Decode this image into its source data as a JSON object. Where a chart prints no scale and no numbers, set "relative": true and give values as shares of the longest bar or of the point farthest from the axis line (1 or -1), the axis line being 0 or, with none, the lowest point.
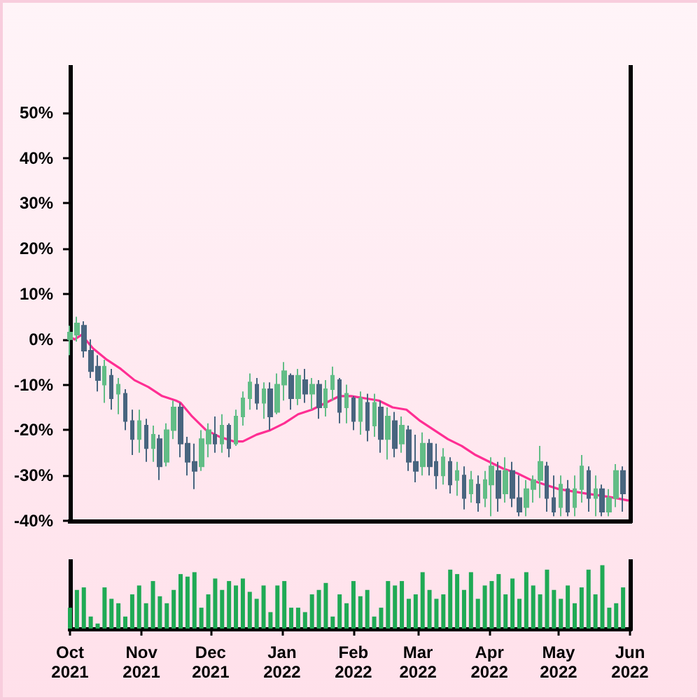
{
  "chart_data": [
    {
      "type": "candlestick",
      "x": [
        "2021-10-01",
        "2021-10-04",
        "2021-10-07",
        "2021-10-10",
        "2021-10-13",
        "2021-10-16",
        "2021-10-19",
        "2021-10-22",
        "2021-10-25",
        "2021-10-28",
        "2021-10-31",
        "2021-11-03",
        "2021-11-06",
        "2021-11-09",
        "2021-11-12",
        "2021-11-15",
        "2021-11-18",
        "2021-11-21",
        "2021-11-24",
        "2021-11-27",
        "2021-11-30",
        "2021-12-03",
        "2021-12-06",
        "2021-12-09",
        "2021-12-12",
        "2021-12-15",
        "2021-12-18",
        "2021-12-21",
        "2021-12-24",
        "2021-12-27",
        "2021-12-30",
        "2022-01-02",
        "2022-01-05",
        "2022-01-08",
        "2022-01-11",
        "2022-01-14",
        "2022-01-17",
        "2022-01-20",
        "2022-01-23",
        "2022-01-26",
        "2022-01-29",
        "2022-02-01",
        "2022-02-04",
        "2022-02-07",
        "2022-02-10",
        "2022-02-13",
        "2022-02-16",
        "2022-02-19",
        "2022-02-22",
        "2022-02-25",
        "2022-02-28",
        "2022-03-03",
        "2022-03-06",
        "2022-03-09",
        "2022-03-12",
        "2022-03-15",
        "2022-03-18",
        "2022-03-21",
        "2022-03-24",
        "2022-03-27",
        "2022-03-30",
        "2022-04-02",
        "2022-04-05",
        "2022-04-08",
        "2022-04-11",
        "2022-04-14",
        "2022-04-17",
        "2022-04-20",
        "2022-04-23",
        "2022-04-26",
        "2022-04-29",
        "2022-05-02",
        "2022-05-05",
        "2022-05-08",
        "2022-05-11",
        "2022-05-14",
        "2022-05-17",
        "2022-05-20",
        "2022-05-23",
        "2022-05-26",
        "2022-05-29"
      ],
      "ohlc": [
        [
          0,
          3,
          -3.5,
          1.5
        ],
        [
          1,
          5,
          -0.5,
          3.5
        ],
        [
          3,
          4,
          -4,
          -2.5
        ],
        [
          -2.5,
          0,
          -8.5,
          -7
        ],
        [
          -6,
          -3.5,
          -11.5,
          -9
        ],
        [
          -10,
          -4.5,
          -14,
          -6
        ],
        [
          -8,
          -6.5,
          -15.5,
          -13
        ],
        [
          -12,
          -8.5,
          -16.5,
          -10
        ],
        [
          -12,
          -11,
          -20,
          -18
        ],
        [
          -18,
          -15.5,
          -25.5,
          -22
        ],
        [
          -22,
          -15.5,
          -25,
          -18
        ],
        [
          -19,
          -17.5,
          -27,
          -24
        ],
        [
          -24,
          -19,
          -27,
          -21
        ],
        [
          -22,
          -21,
          -31,
          -28
        ],
        [
          -27,
          -18.5,
          -28,
          -20
        ],
        [
          -20,
          -13.5,
          -22,
          -15
        ],
        [
          -15,
          -14,
          -26,
          -23
        ],
        [
          -23,
          -21.5,
          -30,
          -27
        ],
        [
          -27,
          -23,
          -33,
          -29
        ],
        [
          -28,
          -20,
          -29,
          -22
        ],
        [
          -23,
          -18.5,
          -26,
          -20
        ],
        [
          -21,
          -17,
          -25,
          -23
        ],
        [
          -23,
          -16.5,
          -25,
          -19
        ],
        [
          -19,
          -18.5,
          -26,
          -24
        ],
        [
          -23,
          -15.5,
          -23.5,
          -17
        ],
        [
          -17,
          -11.5,
          -19,
          -13
        ],
        [
          -13,
          -7.5,
          -15.5,
          -9.5
        ],
        [
          -10,
          -8.5,
          -15.5,
          -14
        ],
        [
          -14,
          -9.5,
          -17.5,
          -11
        ],
        [
          -11,
          -9.5,
          -20,
          -17
        ],
        [
          -16,
          -7.5,
          -16.5,
          -10
        ],
        [
          -10,
          -5,
          -13.5,
          -7
        ],
        [
          -8,
          -7.5,
          -15.5,
          -13
        ],
        [
          -13,
          -6.5,
          -14.5,
          -8
        ],
        [
          -9,
          -6.5,
          -14,
          -12
        ],
        [
          -12,
          -8.5,
          -15.5,
          -10
        ],
        [
          -10,
          -9,
          -17.5,
          -15
        ],
        [
          -15,
          -9,
          -17,
          -11
        ],
        [
          -11,
          -6,
          -13.5,
          -8
        ],
        [
          -9,
          -8.5,
          -18.5,
          -16
        ],
        [
          -15,
          -10,
          -18.5,
          -12
        ],
        [
          -13,
          -12.5,
          -20,
          -18
        ],
        [
          -18,
          -11.5,
          -21,
          -13
        ],
        [
          -14,
          -12,
          -22.5,
          -20
        ],
        [
          -19,
          -12,
          -21.5,
          -14
        ],
        [
          -15,
          -13.5,
          -25,
          -22
        ],
        [
          -22,
          -15,
          -26.5,
          -17
        ],
        [
          -18,
          -16,
          -26,
          -24
        ],
        [
          -23,
          -17,
          -25,
          -19
        ],
        [
          -20,
          -19,
          -29,
          -27
        ],
        [
          -27,
          -21,
          -31.5,
          -29
        ],
        [
          -28,
          -20.5,
          -30,
          -23
        ],
        [
          -23,
          -22,
          -30,
          -28
        ],
        [
          -27,
          -23,
          -33,
          -30
        ],
        [
          -30,
          -24,
          -32,
          -26
        ],
        [
          -27,
          -26,
          -34,
          -32
        ],
        [
          -31,
          -27,
          -34.5,
          -29
        ],
        [
          -30,
          -28,
          -37.5,
          -35
        ],
        [
          -34,
          -29,
          -36,
          -31
        ],
        [
          -32,
          -30,
          -38,
          -36
        ],
        [
          -35,
          -29,
          -37,
          -31
        ],
        [
          -32,
          -26,
          -39,
          -28
        ],
        [
          -29,
          -27,
          -38,
          -35
        ],
        [
          -34,
          -26,
          -36,
          -29
        ],
        [
          -29,
          -27,
          -37,
          -35
        ],
        [
          -35,
          -30,
          -39,
          -38
        ],
        [
          -37,
          -31,
          -39,
          -33
        ],
        [
          -33,
          -30,
          -36,
          -31
        ],
        [
          -31,
          -23.5,
          -35,
          -27
        ],
        [
          -28,
          -27,
          -38,
          -35
        ],
        [
          -35,
          -30,
          -39,
          -38
        ],
        [
          -37,
          -30,
          -39,
          -32
        ],
        [
          -33,
          -31,
          -39,
          -38
        ],
        [
          -37,
          -30,
          -39,
          -33
        ],
        [
          -33,
          -25.5,
          -36,
          -28
        ],
        [
          -29,
          -28,
          -38,
          -35
        ],
        [
          -35,
          -30,
          -39,
          -33
        ],
        [
          -33,
          -32,
          -39,
          -38
        ],
        [
          -38,
          -33,
          -39,
          -35
        ],
        [
          -35,
          -27.5,
          -37,
          -29
        ],
        [
          -29,
          -28,
          -38,
          -34
        ]
      ],
      "colors": [
        "#62bd86",
        "#62bd86",
        "#48657f",
        "#48657f",
        "#48657f",
        "#62bd86",
        "#48657f",
        "#62bd86",
        "#48657f",
        "#48657f",
        "#62bd86",
        "#48657f",
        "#62bd86",
        "#48657f",
        "#62bd86",
        "#62bd86",
        "#48657f",
        "#48657f",
        "#48657f",
        "#62bd86",
        "#62bd86",
        "#48657f",
        "#62bd86",
        "#48657f",
        "#62bd86",
        "#62bd86",
        "#62bd86",
        "#48657f",
        "#62bd86",
        "#48657f",
        "#62bd86",
        "#62bd86",
        "#48657f",
        "#62bd86",
        "#48657f",
        "#62bd86",
        "#48657f",
        "#62bd86",
        "#62bd86",
        "#48657f",
        "#62bd86",
        "#48657f",
        "#62bd86",
        "#48657f",
        "#62bd86",
        "#48657f",
        "#62bd86",
        "#48657f",
        "#62bd86",
        "#48657f",
        "#48657f",
        "#62bd86",
        "#48657f",
        "#48657f",
        "#62bd86",
        "#48657f",
        "#62bd86",
        "#48657f",
        "#62bd86",
        "#48657f",
        "#62bd86",
        "#62bd86",
        "#48657f",
        "#62bd86",
        "#48657f",
        "#48657f",
        "#62bd86",
        "#62bd86",
        "#62bd86",
        "#48657f",
        "#48657f",
        "#62bd86",
        "#48657f",
        "#62bd86",
        "#62bd86",
        "#48657f",
        "#62bd86",
        "#48657f",
        "#62bd86",
        "#62bd86",
        "#48657f"
      ],
      "xlim": [
        "2021-10-01",
        "2022-06-01"
      ],
      "ylim": [
        -40,
        60
      ],
      "yticks": [
        {
          "value": -40,
          "label": "-40%"
        },
        {
          "value": -30,
          "label": "-30%"
        },
        {
          "value": -20,
          "label": "-20%"
        },
        {
          "value": -10,
          "label": "-10%"
        },
        {
          "value": 0,
          "label": "0%"
        },
        {
          "value": 10,
          "label": "10%"
        },
        {
          "value": 20,
          "label": "20%"
        },
        {
          "value": 30,
          "label": "30%"
        },
        {
          "value": 40,
          "label": "40%"
        },
        {
          "value": 50,
          "label": "50%"
        }
      ],
      "tick_labels": "y",
      "series": [
        {
          "type": "line",
          "color": "#ff2e93",
          "x": [
            "2021-10-01",
            "2021-10-03",
            "2021-10-06",
            "2021-10-11",
            "2021-10-17",
            "2021-10-23",
            "2021-10-29",
            "2021-11-04",
            "2021-11-10",
            "2021-11-16",
            "2021-11-18",
            "2021-11-23",
            "2021-11-29",
            "2021-12-05",
            "2021-12-11",
            "2021-12-15",
            "2021-12-21",
            "2021-12-27",
            "2022-01-02",
            "2022-01-08",
            "2022-01-14",
            "2022-01-20",
            "2022-01-26",
            "2022-01-31",
            "2022-02-06",
            "2022-02-12",
            "2022-02-18",
            "2022-02-24",
            "2022-03-02",
            "2022-03-08",
            "2022-03-14",
            "2022-03-20",
            "2022-03-26",
            "2022-04-01",
            "2022-04-07",
            "2022-04-13",
            "2022-04-19",
            "2022-04-25",
            "2022-05-01",
            "2022-05-07",
            "2022-05-13",
            "2022-05-20",
            "2022-05-26",
            "2022-05-31"
          ],
          "values": [
            0.5,
            0,
            1,
            -2,
            -4.5,
            -6.5,
            -9,
            -10.5,
            -12.5,
            -13.5,
            -14,
            -17,
            -20,
            -21.5,
            -22.5,
            -22.5,
            -21,
            -20,
            -18.5,
            -16.5,
            -15.5,
            -14,
            -12.5,
            -12.5,
            -13,
            -13.5,
            -15,
            -15.5,
            -18,
            -20,
            -22,
            -23.5,
            -25.5,
            -27,
            -28.5,
            -29.5,
            -31,
            -32,
            -33,
            -33.5,
            -34,
            -34.5,
            -35,
            -35.5
          ]
        }
      ]
    },
    {
      "type": "bar",
      "relative": true,
      "color": "#1faa55",
      "x": [
        "2021-10-01",
        "2021-10-04",
        "2021-10-07",
        "2021-10-10",
        "2021-10-13",
        "2021-10-16",
        "2021-10-19",
        "2021-10-22",
        "2021-10-25",
        "2021-10-28",
        "2021-10-31",
        "2021-11-03",
        "2021-11-06",
        "2021-11-09",
        "2021-11-12",
        "2021-11-15",
        "2021-11-18",
        "2021-11-21",
        "2021-11-24",
        "2021-11-27",
        "2021-11-30",
        "2021-12-03",
        "2021-12-06",
        "2021-12-09",
        "2021-12-12",
        "2021-12-15",
        "2021-12-18",
        "2021-12-21",
        "2021-12-24",
        "2021-12-27",
        "2021-12-30",
        "2022-01-02",
        "2022-01-05",
        "2022-01-08",
        "2022-01-11",
        "2022-01-14",
        "2022-01-17",
        "2022-01-20",
        "2022-01-23",
        "2022-01-26",
        "2022-01-29",
        "2022-02-01",
        "2022-02-04",
        "2022-02-07",
        "2022-02-10",
        "2022-02-13",
        "2022-02-16",
        "2022-02-19",
        "2022-02-22",
        "2022-02-25",
        "2022-02-28",
        "2022-03-03",
        "2022-03-06",
        "2022-03-09",
        "2022-03-12",
        "2022-03-15",
        "2022-03-18",
        "2022-03-21",
        "2022-03-24",
        "2022-03-27",
        "2022-03-30",
        "2022-04-02",
        "2022-04-05",
        "2022-04-08",
        "2022-04-11",
        "2022-04-14",
        "2022-04-17",
        "2022-04-20",
        "2022-04-23",
        "2022-04-26",
        "2022-04-29",
        "2022-05-02",
        "2022-05-05",
        "2022-05-08",
        "2022-05-11",
        "2022-05-14",
        "2022-05-17",
        "2022-05-20",
        "2022-05-23",
        "2022-05-26",
        "2022-05-29"
      ],
      "values": [
        0.33,
        0.61,
        0.65,
        0.19,
        0.08,
        0.65,
        0.47,
        0.4,
        0.19,
        0.54,
        0.68,
        0.4,
        0.75,
        0.51,
        0.4,
        0.61,
        0.86,
        0.82,
        0.89,
        0.33,
        0.54,
        0.79,
        0.61,
        0.75,
        0.68,
        0.79,
        0.58,
        0.47,
        0.68,
        0.26,
        0.68,
        0.75,
        0.33,
        0.33,
        0.26,
        0.54,
        0.61,
        0.72,
        0.19,
        0.54,
        0.4,
        0.75,
        0.51,
        0.61,
        0.19,
        0.33,
        0.75,
        0.68,
        0.75,
        0.47,
        0.54,
        0.89,
        0.61,
        0.47,
        0.54,
        0.93,
        0.86,
        0.61,
        0.89,
        0.47,
        0.68,
        0.75,
        0.86,
        0.54,
        0.79,
        0.47,
        0.89,
        0.68,
        0.54,
        0.93,
        0.61,
        0.47,
        0.68,
        0.4,
        0.65,
        0.93,
        0.54,
        1,
        0.33,
        0.4,
        0.65
      ],
      "xlim": [
        "2021-10-01",
        "2022-06-01"
      ],
      "xticks": [
        {
          "value": "2021-10-01",
          "label": "Oct 2021"
        },
        {
          "value": "2021-11-01",
          "label": "Nov 2021"
        },
        {
          "value": "2021-12-01",
          "label": "Dec 2021"
        },
        {
          "value": "2022-01-01",
          "label": "Jan 2022"
        },
        {
          "value": "2022-02-01",
          "label": "Feb 2022"
        },
        {
          "value": "2022-03-01",
          "label": "Mar 2022"
        },
        {
          "value": "2022-04-01",
          "label": "Apr 2022"
        },
        {
          "value": "2022-05-01",
          "label": "May 2022"
        },
        {
          "value": "2022-06-01",
          "label": "Jun 2022"
        }
      ],
      "tick_labels": "x"
    }
  ]
}
